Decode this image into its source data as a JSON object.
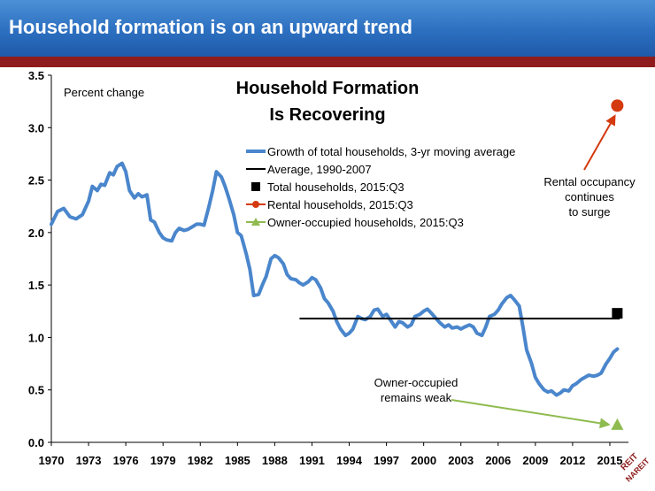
{
  "header": {
    "title": "Household formation is on an upward trend"
  },
  "colors": {
    "banner": "#2c6fc0",
    "accent_bar": "#8e1c1c",
    "line": "#4a86cc",
    "rental": "#d43a10",
    "owner": "#8fbb50",
    "average": "#000000"
  },
  "chart_data": {
    "type": "line",
    "title": "Household Formation Is Recovering",
    "title_lines": [
      "Household Formation",
      "Is Recovering"
    ],
    "ylabel": "Percent change",
    "xlabel": "",
    "ylim": [
      0,
      3.5
    ],
    "xlim": [
      1970,
      2016.5
    ],
    "grid": false,
    "legend_position": "top-center",
    "y_ticks": [
      "0.0",
      "0.5",
      "1.0",
      "1.5",
      "2.0",
      "2.5",
      "3.0",
      "3.5"
    ],
    "x_ticks": [
      "1970",
      "1973",
      "1976",
      "1979",
      "1982",
      "1985",
      "1988",
      "1991",
      "1994",
      "1997",
      "2000",
      "2003",
      "2006",
      "2009",
      "2012",
      "2015"
    ],
    "series": [
      {
        "name": "Growth of total households, 3-yr moving average",
        "style": "line",
        "x": [
          1970.0,
          1970.5,
          1971.0,
          1971.5,
          1972.0,
          1972.5,
          1973.0,
          1973.3,
          1973.7,
          1974.0,
          1974.3,
          1974.7,
          1975.0,
          1975.3,
          1975.7,
          1976.0,
          1976.3,
          1976.7,
          1977.0,
          1977.3,
          1977.7,
          1978.0,
          1978.3,
          1978.7,
          1979.0,
          1979.3,
          1979.7,
          1980.0,
          1980.3,
          1980.7,
          1981.0,
          1981.3,
          1981.7,
          1982.0,
          1982.3,
          1982.7,
          1983.0,
          1983.3,
          1983.7,
          1984.0,
          1984.3,
          1984.7,
          1985.0,
          1985.3,
          1985.7,
          1986.0,
          1986.3,
          1986.7,
          1987.0,
          1987.3,
          1987.7,
          1988.0,
          1988.3,
          1988.7,
          1989.0,
          1989.3,
          1989.7,
          1990.0,
          1990.3,
          1990.7,
          1991.0,
          1991.3,
          1991.7,
          1992.0,
          1992.3,
          1992.7,
          1993.0,
          1993.3,
          1993.7,
          1994.0,
          1994.3,
          1994.7,
          1995.0,
          1995.3,
          1995.7,
          1996.0,
          1996.3,
          1996.7,
          1997.0,
          1997.3,
          1997.7,
          1998.0,
          1998.3,
          1998.7,
          1999.0,
          1999.3,
          1999.7,
          2000.0,
          2000.3,
          2000.7,
          2001.0,
          2001.3,
          2001.7,
          2002.0,
          2002.3,
          2002.7,
          2003.0,
          2003.3,
          2003.7,
          2004.0,
          2004.3,
          2004.7,
          2005.0,
          2005.3,
          2005.7,
          2006.0,
          2006.3,
          2006.7,
          2007.0,
          2007.3,
          2007.7,
          2008.0,
          2008.3,
          2008.7,
          2009.0,
          2009.3,
          2009.7,
          2010.0,
          2010.3,
          2010.7,
          2011.0,
          2011.3,
          2011.7,
          2012.0,
          2012.3,
          2012.7,
          2013.0,
          2013.3,
          2013.7,
          2014.0,
          2014.3,
          2014.7,
          2015.0,
          2015.3,
          2015.6
        ],
        "values": [
          2.08,
          2.2,
          2.23,
          2.15,
          2.13,
          2.17,
          2.3,
          2.44,
          2.4,
          2.46,
          2.45,
          2.57,
          2.55,
          2.63,
          2.66,
          2.58,
          2.4,
          2.33,
          2.37,
          2.34,
          2.36,
          2.12,
          2.1,
          2.0,
          1.95,
          1.93,
          1.92,
          2.0,
          2.04,
          2.02,
          2.03,
          2.05,
          2.08,
          2.08,
          2.07,
          2.25,
          2.4,
          2.58,
          2.53,
          2.44,
          2.33,
          2.17,
          2.0,
          1.97,
          1.8,
          1.65,
          1.4,
          1.41,
          1.5,
          1.58,
          1.75,
          1.78,
          1.76,
          1.7,
          1.6,
          1.56,
          1.55,
          1.52,
          1.5,
          1.53,
          1.57,
          1.55,
          1.47,
          1.37,
          1.33,
          1.25,
          1.15,
          1.08,
          1.02,
          1.04,
          1.08,
          1.2,
          1.18,
          1.17,
          1.2,
          1.26,
          1.27,
          1.2,
          1.22,
          1.17,
          1.1,
          1.15,
          1.14,
          1.1,
          1.12,
          1.2,
          1.22,
          1.25,
          1.27,
          1.22,
          1.18,
          1.14,
          1.1,
          1.12,
          1.09,
          1.1,
          1.08,
          1.1,
          1.12,
          1.1,
          1.04,
          1.02,
          1.1,
          1.2,
          1.22,
          1.26,
          1.32,
          1.38,
          1.4,
          1.36,
          1.3,
          1.1,
          0.88,
          0.75,
          0.62,
          0.56,
          0.5,
          0.48,
          0.49,
          0.45,
          0.47,
          0.5,
          0.49,
          0.54,
          0.56,
          0.6,
          0.62,
          0.64,
          0.63,
          0.64,
          0.66,
          0.75,
          0.8,
          0.86,
          0.89
        ]
      },
      {
        "name": "Average, 1990-2007",
        "style": "hline",
        "x": [
          1990.0,
          2015.8
        ],
        "values": [
          1.18,
          1.18
        ]
      },
      {
        "name": "Total households, 2015:Q3",
        "style": "square",
        "x": [
          2015.6
        ],
        "values": [
          1.23
        ]
      },
      {
        "name": "Rental households, 2015:Q3",
        "style": "circle",
        "x": [
          2015.6
        ],
        "values": [
          3.21
        ]
      },
      {
        "name": "Owner-occupied households, 2015:Q3",
        "style": "triangle",
        "x": [
          2015.6
        ],
        "values": [
          0.17
        ]
      }
    ],
    "annotations": [
      {
        "id": "rental",
        "lines": [
          "Rental occupancy",
          "continues",
          "to surge"
        ]
      },
      {
        "id": "owner",
        "lines": [
          "Owner-occupied",
          "remains weak"
        ]
      }
    ]
  },
  "logo": {
    "text": "REIT NAREIT"
  }
}
